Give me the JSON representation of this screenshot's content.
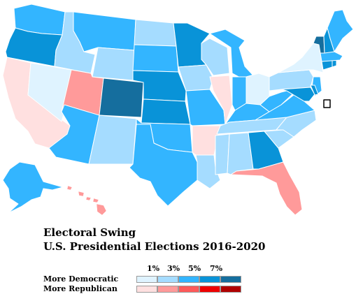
{
  "legend": {
    "title_line1": "Electoral Swing",
    "title_line2": "U.S. Presidential Elections 2016-2020",
    "scale_labels": [
      "1%",
      "3%",
      "5%",
      "7%"
    ],
    "row_democratic": "More Democratic",
    "row_republican": "More Republican",
    "democratic_colors": [
      "#dff3ff",
      "#a5dcff",
      "#33b5ff",
      "#0993d8",
      "#156e9e"
    ],
    "republican_colors": [
      "#ffe0e0",
      "#ff9a9a",
      "#ff5a5a",
      "#ee0000",
      "#b00000"
    ]
  },
  "states": {
    "WA": {
      "name": "Washington",
      "swing": "Democratic",
      "color": "#33b5ff"
    },
    "OR": {
      "name": "Oregon",
      "swing": "Democratic",
      "color": "#0993d8"
    },
    "CA": {
      "name": "California",
      "swing": "Republican",
      "color": "#ffe0e0"
    },
    "NV": {
      "name": "Nevada",
      "swing": "Democratic",
      "color": "#dff3ff"
    },
    "ID": {
      "name": "Idaho",
      "swing": "Democratic",
      "color": "#a5dcff"
    },
    "MT": {
      "name": "Montana",
      "swing": "Democratic",
      "color": "#33b5ff"
    },
    "WY": {
      "name": "Wyoming",
      "swing": "Democratic",
      "color": "#a5dcff"
    },
    "UT": {
      "name": "Utah",
      "swing": "Republican",
      "color": "#ff9a9a"
    },
    "AZ": {
      "name": "Arizona",
      "swing": "Democratic",
      "color": "#33b5ff"
    },
    "CO": {
      "name": "Colorado",
      "swing": "Democratic",
      "color": "#156e9e"
    },
    "NM": {
      "name": "New Mexico",
      "swing": "Democratic",
      "color": "#a5dcff"
    },
    "ND": {
      "name": "North Dakota",
      "swing": "Democratic",
      "color": "#a5dcff"
    },
    "SD": {
      "name": "South Dakota",
      "swing": "Democratic",
      "color": "#33b5ff"
    },
    "NE": {
      "name": "Nebraska",
      "swing": "Democratic",
      "color": "#0993d8"
    },
    "KS": {
      "name": "Kansas",
      "swing": "Democratic",
      "color": "#0993d8"
    },
    "OK": {
      "name": "Oklahoma",
      "swing": "Democratic",
      "color": "#33b5ff"
    },
    "TX": {
      "name": "Texas",
      "swing": "Democratic",
      "color": "#33b5ff"
    },
    "MN": {
      "name": "Minnesota",
      "swing": "Democratic",
      "color": "#0993d8"
    },
    "IA": {
      "name": "Iowa",
      "swing": "Democratic",
      "color": "#a5dcff"
    },
    "MO": {
      "name": "Missouri",
      "swing": "Democratic",
      "color": "#33b5ff"
    },
    "AR": {
      "name": "Arkansas",
      "swing": "Republican",
      "color": "#ffe0e0"
    },
    "LA": {
      "name": "Louisiana",
      "swing": "Democratic",
      "color": "#a5dcff"
    },
    "WI": {
      "name": "Wisconsin",
      "swing": "Democratic",
      "color": "#a5dcff"
    },
    "IL": {
      "name": "Illinois",
      "swing": "Republican",
      "color": "#ffe0e0"
    },
    "MI": {
      "name": "Michigan",
      "swing": "Democratic",
      "color": "#33b5ff"
    },
    "IN": {
      "name": "Indiana",
      "swing": "Democratic",
      "color": "#33b5ff"
    },
    "OH": {
      "name": "Ohio",
      "swing": "Democratic",
      "color": "#dff3ff"
    },
    "KY": {
      "name": "Kentucky",
      "swing": "Democratic",
      "color": "#33b5ff"
    },
    "TN": {
      "name": "Tennessee",
      "swing": "Democratic",
      "color": "#a5dcff"
    },
    "MS": {
      "name": "Mississippi",
      "swing": "Democratic",
      "color": "#a5dcff"
    },
    "AL": {
      "name": "Alabama",
      "swing": "Democratic",
      "color": "#a5dcff"
    },
    "GA": {
      "name": "Georgia",
      "swing": "Democratic",
      "color": "#0993d8"
    },
    "FL": {
      "name": "Florida",
      "swing": "Republican",
      "color": "#ff9a9a"
    },
    "SC": {
      "name": "South Carolina",
      "swing": "Democratic",
      "color": "#a5dcff"
    },
    "NC": {
      "name": "North Carolina",
      "swing": "Democratic",
      "color": "#a5dcff"
    },
    "VA": {
      "name": "Virginia",
      "swing": "Democratic",
      "color": "#33b5ff"
    },
    "WV": {
      "name": "West Virginia",
      "swing": "Democratic",
      "color": "#33b5ff"
    },
    "PA": {
      "name": "Pennsylvania",
      "swing": "Democratic",
      "color": "#a5dcff"
    },
    "NY": {
      "name": "New York",
      "swing": "Democratic",
      "color": "#dff3ff"
    },
    "NJ": {
      "name": "New Jersey",
      "swing": "Democratic",
      "color": "#33b5ff"
    },
    "MD": {
      "name": "Maryland",
      "swing": "Democratic",
      "color": "#0993d8"
    },
    "DE": {
      "name": "Delaware",
      "swing": "Democratic",
      "color": "#0993d8"
    },
    "CT": {
      "name": "Connecticut",
      "swing": "Democratic",
      "color": "#0993d8"
    },
    "RI": {
      "name": "Rhode Island",
      "swing": "Democratic",
      "color": "#0993d8"
    },
    "MA": {
      "name": "Massachusetts",
      "swing": "Democratic",
      "color": "#33b5ff"
    },
    "VT": {
      "name": "Vermont",
      "swing": "Democratic",
      "color": "#156e9e"
    },
    "NH": {
      "name": "New Hampshire",
      "swing": "Democratic",
      "color": "#0993d8"
    },
    "ME": {
      "name": "Maine",
      "swing": "Democratic",
      "color": "#33b5ff"
    },
    "AK": {
      "name": "Alaska",
      "swing": "Democratic",
      "color": "#33b5ff"
    },
    "HI": {
      "name": "Hawaii",
      "swing": "Republican",
      "color": "#ff9a9a"
    },
    "DC": {
      "name": "District of Columbia",
      "swing": "Democratic",
      "color": "#ffffff"
    }
  }
}
